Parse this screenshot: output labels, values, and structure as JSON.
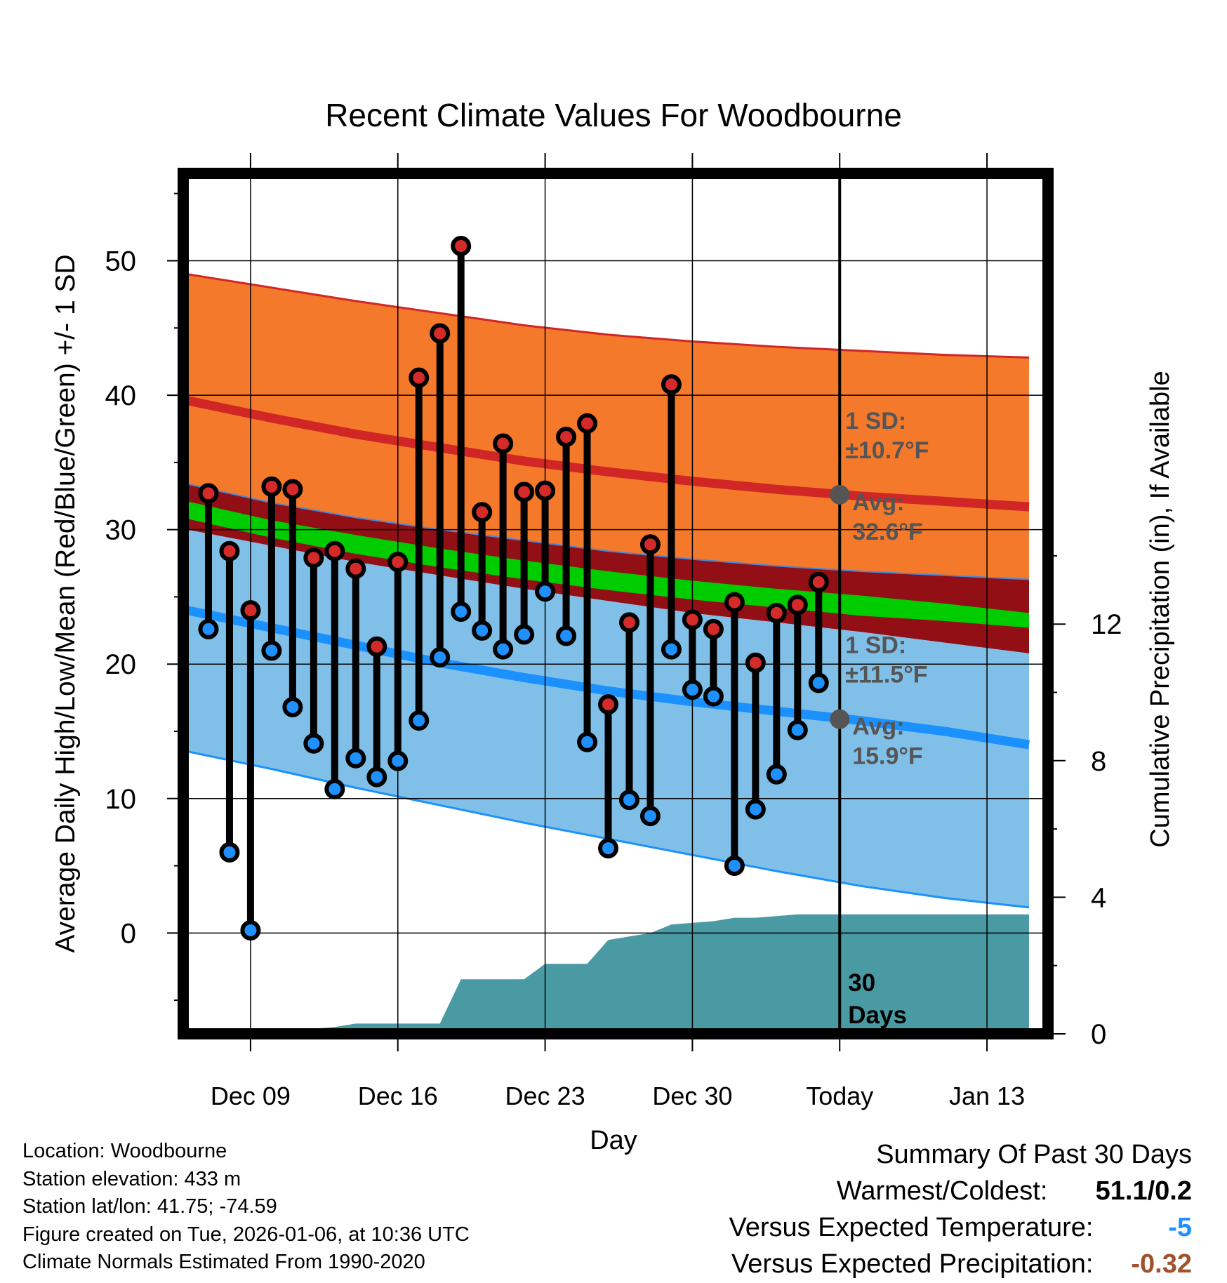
{
  "chart_data": {
    "type": "line",
    "title": "Recent Climate Values For Woodbourne",
    "xlabel": "Day",
    "ylabel": "Average Daily High/Low/Mean (Red/Blue/Green) +/- 1 SD",
    "y2label": "Cumulative Precipitation (in), If Available",
    "x_tick_labels": [
      "Dec 09",
      "Dec 16",
      "Dec 23",
      "Dec 30",
      "Today",
      "Jan 13"
    ],
    "x_tick_days": [
      9,
      16,
      23,
      30,
      37,
      44
    ],
    "xlim": [
      5.8,
      46.9
    ],
    "ylim": [
      -7.5,
      56.5
    ],
    "y_ticks": [
      0,
      10,
      20,
      30,
      40,
      50
    ],
    "y2lim": [
      0,
      25.2
    ],
    "y2_ticks": [
      0,
      4,
      8,
      12
    ],
    "today_day": 37,
    "today_marker_label": "30 Days",
    "normals": {
      "days": [
        6,
        10,
        14,
        18,
        22,
        26,
        30,
        34,
        38,
        42,
        46
      ],
      "high_mean": [
        39.6,
        38.3,
        37.1,
        36.1,
        35.1,
        34.3,
        33.6,
        33.0,
        32.5,
        32.1,
        31.7
      ],
      "high_upper": [
        49.0,
        48.0,
        47.0,
        46.1,
        45.2,
        44.5,
        44.0,
        43.6,
        43.3,
        43.0,
        42.8
      ],
      "high_lower": [
        33.4,
        32.0,
        30.9,
        30.0,
        29.2,
        28.4,
        27.8,
        27.3,
        26.9,
        26.6,
        26.3
      ],
      "mean_upper": [
        32.1,
        30.7,
        29.6,
        28.6,
        27.7,
        26.9,
        26.2,
        25.6,
        25.1,
        24.5,
        23.8
      ],
      "mean_lower": [
        30.8,
        29.4,
        28.2,
        27.2,
        26.3,
        25.5,
        24.8,
        24.2,
        23.6,
        23.2,
        22.7
      ],
      "low_mean": [
        24.0,
        22.7,
        21.4,
        20.1,
        19.0,
        18.0,
        17.2,
        16.5,
        15.8,
        15.0,
        14.0
      ],
      "low_upper": [
        30.0,
        28.8,
        27.6,
        26.6,
        25.6,
        24.7,
        23.8,
        23.1,
        22.4,
        21.6,
        20.8
      ],
      "low_lower": [
        13.5,
        12.2,
        10.8,
        9.5,
        8.2,
        7.0,
        5.8,
        4.6,
        3.5,
        2.6,
        1.9
      ]
    },
    "high_annotation": {
      "sd_label": "1 SD:",
      "sd_value": "±10.7°F",
      "avg_label": "Avg:",
      "avg_value": "32.6°F",
      "avg": 32.6
    },
    "low_annotation": {
      "sd_label": "1 SD:",
      "sd_value": "±11.5°F",
      "avg_label": "Avg:",
      "avg_value": "15.9°F",
      "avg": 15.9
    },
    "observed": {
      "days": [
        7,
        8,
        9,
        10,
        11,
        12,
        13,
        14,
        15,
        16,
        17,
        18,
        19,
        20,
        21,
        22,
        23,
        24,
        25,
        26,
        27,
        28,
        29,
        30,
        31,
        32,
        33,
        34,
        35,
        36
      ],
      "highs": [
        32.7,
        28.4,
        24.0,
        33.2,
        33.0,
        27.9,
        28.4,
        27.1,
        21.3,
        27.6,
        41.3,
        44.6,
        51.1,
        31.3,
        36.4,
        32.8,
        32.9,
        36.9,
        37.9,
        17.0,
        23.1,
        28.9,
        40.8,
        23.3,
        22.6,
        24.6,
        20.1,
        23.8,
        24.4,
        26.1
      ],
      "lows": [
        22.6,
        6.0,
        0.2,
        21.0,
        16.8,
        14.1,
        10.7,
        13.0,
        11.6,
        12.8,
        15.8,
        20.5,
        23.9,
        22.5,
        21.1,
        22.2,
        25.4,
        22.1,
        14.2,
        6.3,
        9.9,
        8.7,
        21.1,
        18.1,
        17.6,
        5.0,
        9.2,
        11.8,
        15.1,
        18.6
      ]
    },
    "precipitation": {
      "days": [
        6,
        6.9,
        7.1,
        8,
        9,
        10,
        10.6,
        11,
        12,
        13,
        14,
        15,
        16,
        17,
        18,
        19,
        20,
        21,
        22,
        23,
        24,
        25,
        26,
        27,
        28,
        29,
        30,
        31,
        32,
        33,
        34,
        35,
        36,
        37,
        38,
        40,
        43,
        46
      ],
      "cumulative": [
        0,
        0,
        0,
        0,
        0.05,
        0.15,
        0.15,
        0.15,
        0.15,
        0.2,
        0.3,
        0.3,
        0.3,
        0.3,
        0.3,
        1.6,
        1.6,
        1.6,
        1.6,
        2.05,
        2.05,
        2.05,
        2.75,
        2.85,
        2.95,
        3.2,
        3.25,
        3.3,
        3.4,
        3.4,
        3.45,
        3.5,
        3.5,
        3.5,
        3.5,
        3.5,
        3.5,
        3.5
      ]
    },
    "colors": {
      "high_band": "#f5792b",
      "high_mean": "#d02626",
      "mean_band": "#910f15",
      "mean_line": "#00cc00",
      "low_band": "#80c0e8",
      "low_mean": "#1b90ff",
      "precip": "#4a9aa3",
      "high_dot": "#d42a2a",
      "low_dot": "#1e90ff",
      "annotation": "#555555"
    }
  },
  "info": {
    "location": "Location: Woodbourne",
    "elevation": "Station elevation: 433 m",
    "latlon": "Station lat/lon: 41.75; -74.59",
    "created": "Figure created on Tue, 2026-01-06, at 10:36 UTC",
    "normals": "Climate Normals Estimated From 1990-2020"
  },
  "summary": {
    "title": "Summary Of Past 30 Days",
    "warmest_label": "Warmest/Coldest:",
    "warmest_value": "51.1/0.2",
    "temp_label": "Versus Expected Temperature:",
    "temp_value": "-5",
    "temp_color": "#1e90ff",
    "precip_label": "Versus Expected Precipitation:",
    "precip_value": "-0.32",
    "precip_color": "#a0522d"
  }
}
